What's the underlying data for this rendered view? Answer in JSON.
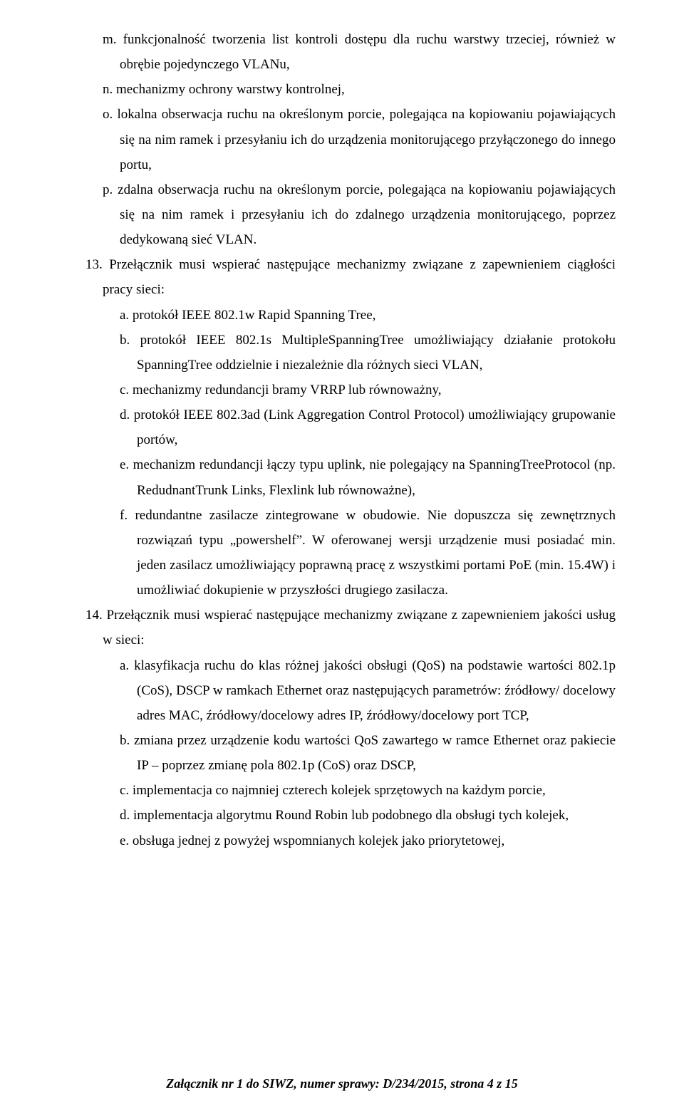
{
  "items": {
    "m": "m. funkcjonalność tworzenia list kontroli dostępu dla ruchu warstwy trzeciej, również w obrębie pojedynczego VLANu,",
    "n": "n. mechanizmy ochrony warstwy kontrolnej,",
    "o": "o. lokalna obserwacja ruchu na określonym porcie, polegająca na kopiowaniu pojawiających się na nim ramek i przesyłaniu ich do urządzenia monitorującego przyłączonego do innego portu,",
    "p": "p. zdalna obserwacja ruchu na określonym porcie, polegająca na kopiowaniu pojawiających się na nim ramek i przesyłaniu ich do zdalnego urządzenia monitorującego, poprzez dedykowaną sieć VLAN."
  },
  "num13": {
    "lead": "13. Przełącznik musi wspierać następujące mechanizmy związane z zapewnieniem ciągłości pracy sieci:",
    "a": "a. protokół IEEE 802.1w  Rapid Spanning Tree,",
    "b": "b. protokół IEEE 802.1s MultipleSpanningTree umożliwiający działanie protokołu SpanningTree oddzielnie i niezależnie dla różnych sieci VLAN,",
    "c": "c. mechanizmy redundancji bramy VRRP lub równoważny,",
    "d": "d. protokół IEEE 802.3ad (Link Aggregation Control Protocol) umożliwiający grupowanie portów,",
    "e": "e. mechanizm redundancji łączy typu uplink, nie polegający na SpanningTreeProtocol (np. RedudnantTrunk Links, Flexlink lub równoważne),",
    "f": "f. redundantne zasilacze zintegrowane w obudowie. Nie dopuszcza się zewnętrznych rozwiązań typu „powershelf”. W oferowanej wersji urządzenie musi posiadać min. jeden zasilacz umożliwiający poprawną pracę z wszystkimi portami PoE (min. 15.4W) i umożliwiać dokupienie w przyszłości drugiego zasilacza."
  },
  "num14": {
    "lead": "14. Przełącznik musi wspierać następujące mechanizmy związane z zapewnieniem jakości usług w sieci:",
    "a": "a. klasyfikacja ruchu do klas różnej jakości obsługi (QoS) na podstawie wartości 802.1p (CoS), DSCP w ramkach Ethernet oraz następujących  parametrów: źródłowy/ docelowy adres MAC, źródłowy/docelowy adres IP, źródłowy/docelowy port TCP,",
    "b": "b. zmiana przez urządzenie kodu wartości QoS zawartego w ramce Ethernet oraz pakiecie IP – poprzez zmianę pola 802.1p (CoS) oraz DSCP,",
    "c": "c. implementacja co najmniej czterech kolejek sprzętowych na każdym porcie,",
    "d": "d. implementacja algorytmu Round Robin lub podobnego dla obsługi tych kolejek,",
    "e": "e. obsługa jednej z powyżej wspomnianych kolejek jako priorytetowej,"
  },
  "footer": "Załącznik nr 1 do SIWZ, numer sprawy: D/234/2015, strona 4 z 15"
}
